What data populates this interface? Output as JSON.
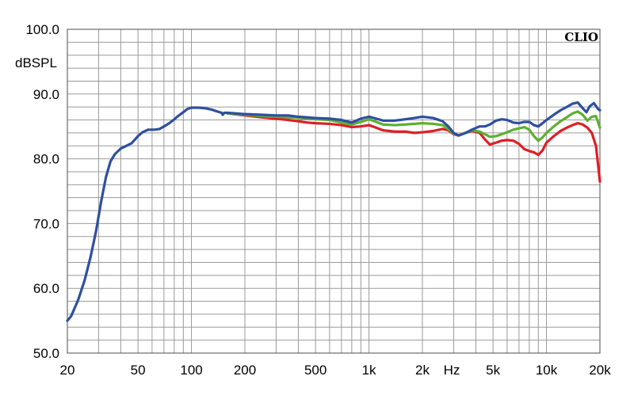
{
  "chart_data": {
    "type": "line",
    "brand": "CLIO",
    "ylabel": "dBSPL",
    "xunit": "Hz",
    "xscale": "log",
    "xlim": [
      20,
      20000
    ],
    "ylim": [
      50,
      100
    ],
    "grid": true,
    "yticks": [
      {
        "value": 100,
        "label": "100.0"
      },
      {
        "value": 90,
        "label": "90.0"
      },
      {
        "value": 80,
        "label": "80.0"
      },
      {
        "value": 70,
        "label": "70.0"
      },
      {
        "value": 60,
        "label": "60.0"
      },
      {
        "value": 50,
        "label": "50.0"
      }
    ],
    "xticks": [
      {
        "value": 20,
        "label": "20"
      },
      {
        "value": 50,
        "label": "50"
      },
      {
        "value": 100,
        "label": "100"
      },
      {
        "value": 200,
        "label": "200"
      },
      {
        "value": 500,
        "label": "500"
      },
      {
        "value": 1000,
        "label": "1k"
      },
      {
        "value": 2000,
        "label": "2k"
      },
      {
        "value": 5000,
        "label": "5k"
      },
      {
        "value": 10000,
        "label": "10k"
      },
      {
        "value": 20000,
        "label": "20k"
      }
    ],
    "series": [
      {
        "color": "#dd1f26",
        "points": [
          [
            160,
            87.0
          ],
          [
            200,
            86.7
          ],
          [
            250,
            86.4
          ],
          [
            300,
            86.2
          ],
          [
            350,
            86.0
          ],
          [
            400,
            85.8
          ],
          [
            450,
            85.6
          ],
          [
            500,
            85.5
          ],
          [
            600,
            85.4
          ],
          [
            700,
            85.2
          ],
          [
            800,
            84.9
          ],
          [
            900,
            85.0
          ],
          [
            1000,
            85.2
          ],
          [
            1100,
            84.8
          ],
          [
            1200,
            84.4
          ],
          [
            1400,
            84.2
          ],
          [
            1600,
            84.2
          ],
          [
            1800,
            84.0
          ],
          [
            2000,
            84.1
          ],
          [
            2300,
            84.3
          ],
          [
            2600,
            84.6
          ],
          [
            2800,
            84.4
          ],
          [
            3000,
            83.8
          ],
          [
            3200,
            83.6
          ],
          [
            3500,
            84.0
          ],
          [
            3800,
            84.3
          ],
          [
            4200,
            84.0
          ],
          [
            4500,
            83.0
          ],
          [
            4800,
            82.2
          ],
          [
            5200,
            82.5
          ],
          [
            5600,
            82.8
          ],
          [
            6000,
            82.9
          ],
          [
            6500,
            82.8
          ],
          [
            7000,
            82.3
          ],
          [
            7500,
            81.5
          ],
          [
            8000,
            81.2
          ],
          [
            8500,
            81.0
          ],
          [
            9000,
            80.6
          ],
          [
            9500,
            81.3
          ],
          [
            10000,
            82.5
          ],
          [
            11000,
            83.5
          ],
          [
            12000,
            84.3
          ],
          [
            13000,
            84.8
          ],
          [
            14000,
            85.2
          ],
          [
            15000,
            85.5
          ],
          [
            16000,
            85.3
          ],
          [
            17000,
            84.8
          ],
          [
            18000,
            84.0
          ],
          [
            19000,
            82.0
          ],
          [
            20000,
            76.5
          ]
        ]
      },
      {
        "color": "#5caf32",
        "points": [
          [
            160,
            87.0
          ],
          [
            200,
            86.8
          ],
          [
            250,
            86.6
          ],
          [
            300,
            86.5
          ],
          [
            400,
            86.3
          ],
          [
            500,
            86.1
          ],
          [
            600,
            86.0
          ],
          [
            700,
            85.6
          ],
          [
            800,
            85.3
          ],
          [
            900,
            85.7
          ],
          [
            1000,
            86.1
          ],
          [
            1100,
            85.7
          ],
          [
            1200,
            85.3
          ],
          [
            1400,
            85.2
          ],
          [
            1600,
            85.3
          ],
          [
            1800,
            85.4
          ],
          [
            2000,
            85.5
          ],
          [
            2300,
            85.4
          ],
          [
            2600,
            85.2
          ],
          [
            2800,
            84.6
          ],
          [
            3000,
            83.9
          ],
          [
            3200,
            83.6
          ],
          [
            3500,
            84.0
          ],
          [
            3800,
            84.4
          ],
          [
            4200,
            84.2
          ],
          [
            4500,
            83.8
          ],
          [
            4800,
            83.4
          ],
          [
            5200,
            83.5
          ],
          [
            5600,
            83.8
          ],
          [
            6000,
            84.1
          ],
          [
            6500,
            84.5
          ],
          [
            7000,
            84.7
          ],
          [
            7500,
            84.9
          ],
          [
            8000,
            84.5
          ],
          [
            8500,
            83.5
          ],
          [
            9000,
            82.8
          ],
          [
            9500,
            83.3
          ],
          [
            10000,
            84.0
          ],
          [
            11000,
            85.0
          ],
          [
            12000,
            85.8
          ],
          [
            13000,
            86.4
          ],
          [
            14000,
            87.0
          ],
          [
            15000,
            87.3
          ],
          [
            16000,
            86.8
          ],
          [
            17000,
            85.9
          ],
          [
            18000,
            86.5
          ],
          [
            19000,
            86.6
          ],
          [
            20000,
            84.8
          ]
        ]
      },
      {
        "color": "#2f4f9f",
        "points": [
          [
            20,
            55.0
          ],
          [
            21,
            55.7
          ],
          [
            23,
            58.2
          ],
          [
            25,
            61.2
          ],
          [
            27,
            64.8
          ],
          [
            29,
            68.8
          ],
          [
            31,
            73.4
          ],
          [
            33,
            77.2
          ],
          [
            35,
            79.6
          ],
          [
            37,
            80.7
          ],
          [
            40,
            81.6
          ],
          [
            43,
            82.0
          ],
          [
            46,
            82.4
          ],
          [
            50,
            83.5
          ],
          [
            53,
            84.1
          ],
          [
            57,
            84.5
          ],
          [
            62,
            84.5
          ],
          [
            66,
            84.6
          ],
          [
            70,
            85.0
          ],
          [
            75,
            85.5
          ],
          [
            80,
            86.1
          ],
          [
            85,
            86.7
          ],
          [
            90,
            87.2
          ],
          [
            95,
            87.7
          ],
          [
            100,
            87.9
          ],
          [
            110,
            87.9
          ],
          [
            120,
            87.8
          ],
          [
            130,
            87.6
          ],
          [
            140,
            87.3
          ],
          [
            148,
            87.1
          ],
          [
            150,
            86.8
          ],
          [
            153,
            87.1
          ],
          [
            160,
            87.1
          ],
          [
            180,
            87.0
          ],
          [
            200,
            86.9
          ],
          [
            250,
            86.8
          ],
          [
            300,
            86.7
          ],
          [
            350,
            86.7
          ],
          [
            400,
            86.5
          ],
          [
            500,
            86.3
          ],
          [
            600,
            86.2
          ],
          [
            700,
            86.0
          ],
          [
            800,
            85.6
          ],
          [
            900,
            86.2
          ],
          [
            1000,
            86.5
          ],
          [
            1100,
            86.2
          ],
          [
            1200,
            85.9
          ],
          [
            1400,
            85.9
          ],
          [
            1600,
            86.1
          ],
          [
            1800,
            86.3
          ],
          [
            2000,
            86.5
          ],
          [
            2300,
            86.3
          ],
          [
            2600,
            85.8
          ],
          [
            2800,
            85.0
          ],
          [
            3000,
            84.0
          ],
          [
            3200,
            83.6
          ],
          [
            3500,
            84.0
          ],
          [
            3800,
            84.5
          ],
          [
            4200,
            85.0
          ],
          [
            4500,
            85.0
          ],
          [
            4800,
            85.3
          ],
          [
            5200,
            85.9
          ],
          [
            5600,
            86.1
          ],
          [
            6000,
            86.0
          ],
          [
            6500,
            85.6
          ],
          [
            7000,
            85.5
          ],
          [
            7500,
            85.7
          ],
          [
            8000,
            85.7
          ],
          [
            8500,
            85.2
          ],
          [
            9000,
            85.0
          ],
          [
            9500,
            85.5
          ],
          [
            10000,
            86.0
          ],
          [
            11000,
            86.8
          ],
          [
            12000,
            87.5
          ],
          [
            13000,
            88.0
          ],
          [
            14000,
            88.5
          ],
          [
            15000,
            88.7
          ],
          [
            16000,
            87.8
          ],
          [
            16800,
            87.2
          ],
          [
            17500,
            88.1
          ],
          [
            18500,
            88.6
          ],
          [
            19500,
            87.7
          ],
          [
            20000,
            87.5
          ]
        ]
      }
    ]
  }
}
